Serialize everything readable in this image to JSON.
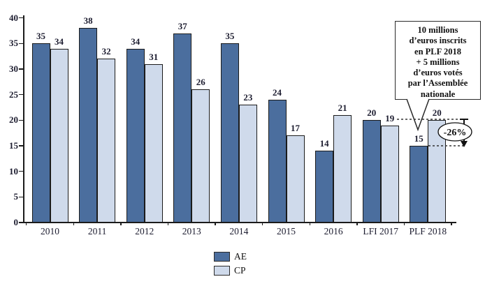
{
  "chart_data": {
    "type": "bar",
    "title": "",
    "categories": [
      "2010",
      "2011",
      "2012",
      "2013",
      "2014",
      "2015",
      "2016",
      "LFI 2017",
      "PLF 2018"
    ],
    "series": [
      {
        "name": "AE",
        "color": "#4b6e9e",
        "values": [
          35,
          38,
          34,
          37,
          35,
          24,
          14,
          20,
          15
        ]
      },
      {
        "name": "CP",
        "color": "#cfdaeb",
        "values": [
          34,
          32,
          31,
          26,
          23,
          17,
          21,
          19,
          20
        ]
      }
    ],
    "ylim": [
      0,
      40
    ],
    "yticks": [
      0,
      5,
      10,
      15,
      20,
      25,
      30,
      35,
      40
    ],
    "grid": false,
    "value_labels": true,
    "legend_position": "bottom-center"
  },
  "annotation": {
    "callout_text": "10 millions\nd’euros inscrits\nen PLF 2018\n+ 5 millions\nd’euros votés\npar l’Assemblée\nnationale",
    "delta_label": "-26%"
  },
  "colors": {
    "ae": "#4b6e9e",
    "cp": "#cfdaeb",
    "axis": "#1b1b1b",
    "dashed": "#333333"
  }
}
